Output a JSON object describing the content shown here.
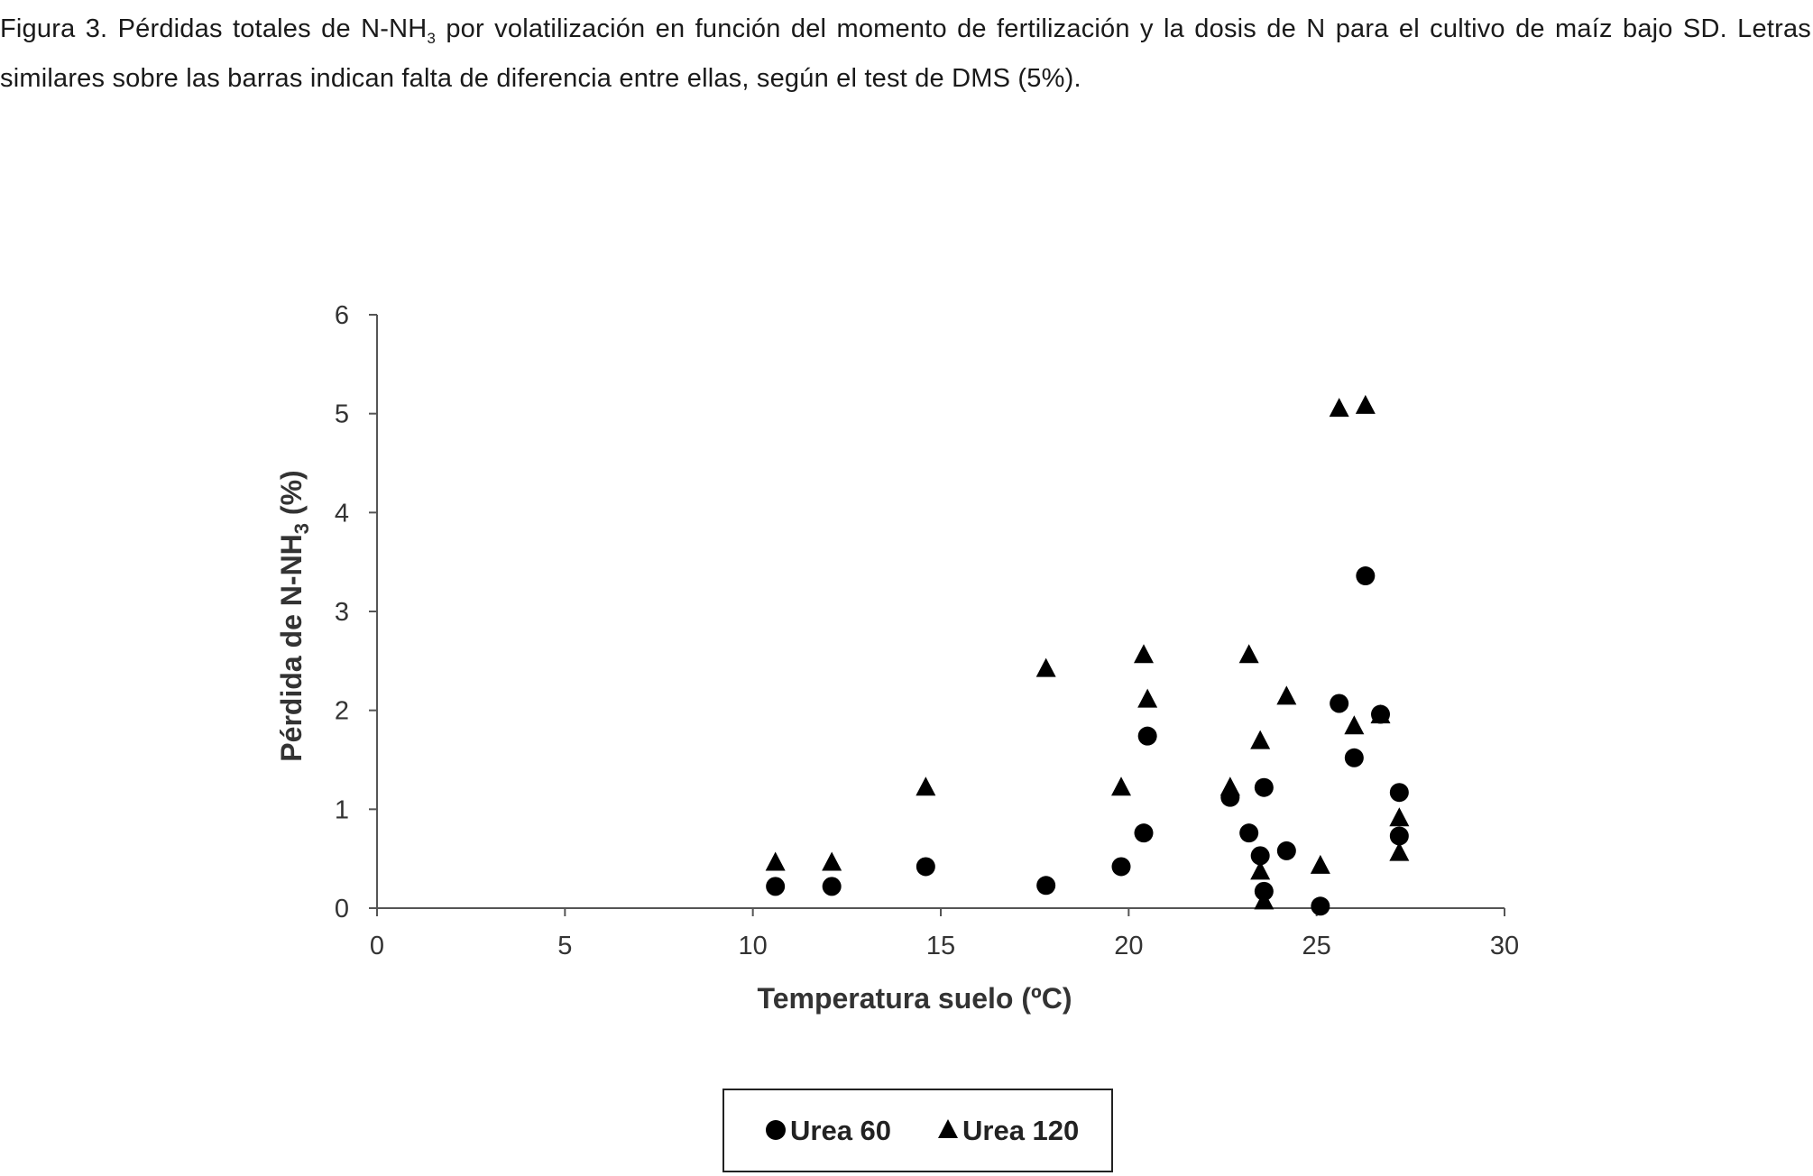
{
  "caption": {
    "text_a": "Figura 3. Pérdidas totales de N-NH",
    "sub": "3",
    "text_b": " por volatilización en función del momento de fertilización y la dosis de N para el cultivo de maíz bajo SD. Letras similares sobre las barras indican falta de diferencia entre ellas, según el test de DMS (5%)."
  },
  "chart_data": {
    "type": "scatter",
    "xlabel": "Temperatura suelo (ºC)",
    "ylabel_main": "Pérdida de N-NH",
    "ylabel_sub": "3",
    "ylabel_end": " (%)",
    "xlim": [
      0,
      30
    ],
    "ylim": [
      0,
      6
    ],
    "xticks": [
      0,
      5,
      10,
      15,
      20,
      25,
      30
    ],
    "yticks": [
      0,
      1,
      2,
      3,
      4,
      5,
      6
    ],
    "grid": false,
    "legend_position": "bottom",
    "series": [
      {
        "name": "Urea 60",
        "marker": "circle",
        "color": "#000000",
        "points": [
          [
            10.6,
            0.22
          ],
          [
            12.1,
            0.22
          ],
          [
            14.6,
            0.42
          ],
          [
            17.8,
            0.23
          ],
          [
            19.8,
            0.42
          ],
          [
            20.4,
            0.76
          ],
          [
            20.5,
            1.74
          ],
          [
            22.7,
            1.12
          ],
          [
            23.2,
            0.76
          ],
          [
            23.5,
            0.53
          ],
          [
            23.6,
            1.22
          ],
          [
            23.6,
            0.17
          ],
          [
            24.2,
            0.58
          ],
          [
            25.1,
            0.02
          ],
          [
            25.6,
            2.07
          ],
          [
            26.0,
            1.52
          ],
          [
            26.3,
            3.36
          ],
          [
            26.7,
            1.96
          ],
          [
            27.2,
            1.17
          ],
          [
            27.2,
            0.73
          ]
        ]
      },
      {
        "name": "Urea 120",
        "marker": "triangle",
        "color": "#000000",
        "points": [
          [
            10.6,
            0.46
          ],
          [
            12.1,
            0.46
          ],
          [
            14.6,
            1.22
          ],
          [
            17.8,
            2.42
          ],
          [
            19.8,
            1.22
          ],
          [
            20.4,
            2.56
          ],
          [
            20.5,
            2.11
          ],
          [
            22.7,
            1.22
          ],
          [
            23.2,
            2.56
          ],
          [
            23.5,
            1.69
          ],
          [
            23.5,
            0.37
          ],
          [
            23.6,
            0.07
          ],
          [
            24.2,
            2.14
          ],
          [
            25.1,
            0.43
          ],
          [
            25.6,
            5.05
          ],
          [
            26.0,
            1.84
          ],
          [
            26.3,
            5.08
          ],
          [
            26.7,
            1.95
          ],
          [
            27.2,
            0.91
          ],
          [
            27.2,
            0.56
          ]
        ]
      }
    ]
  }
}
